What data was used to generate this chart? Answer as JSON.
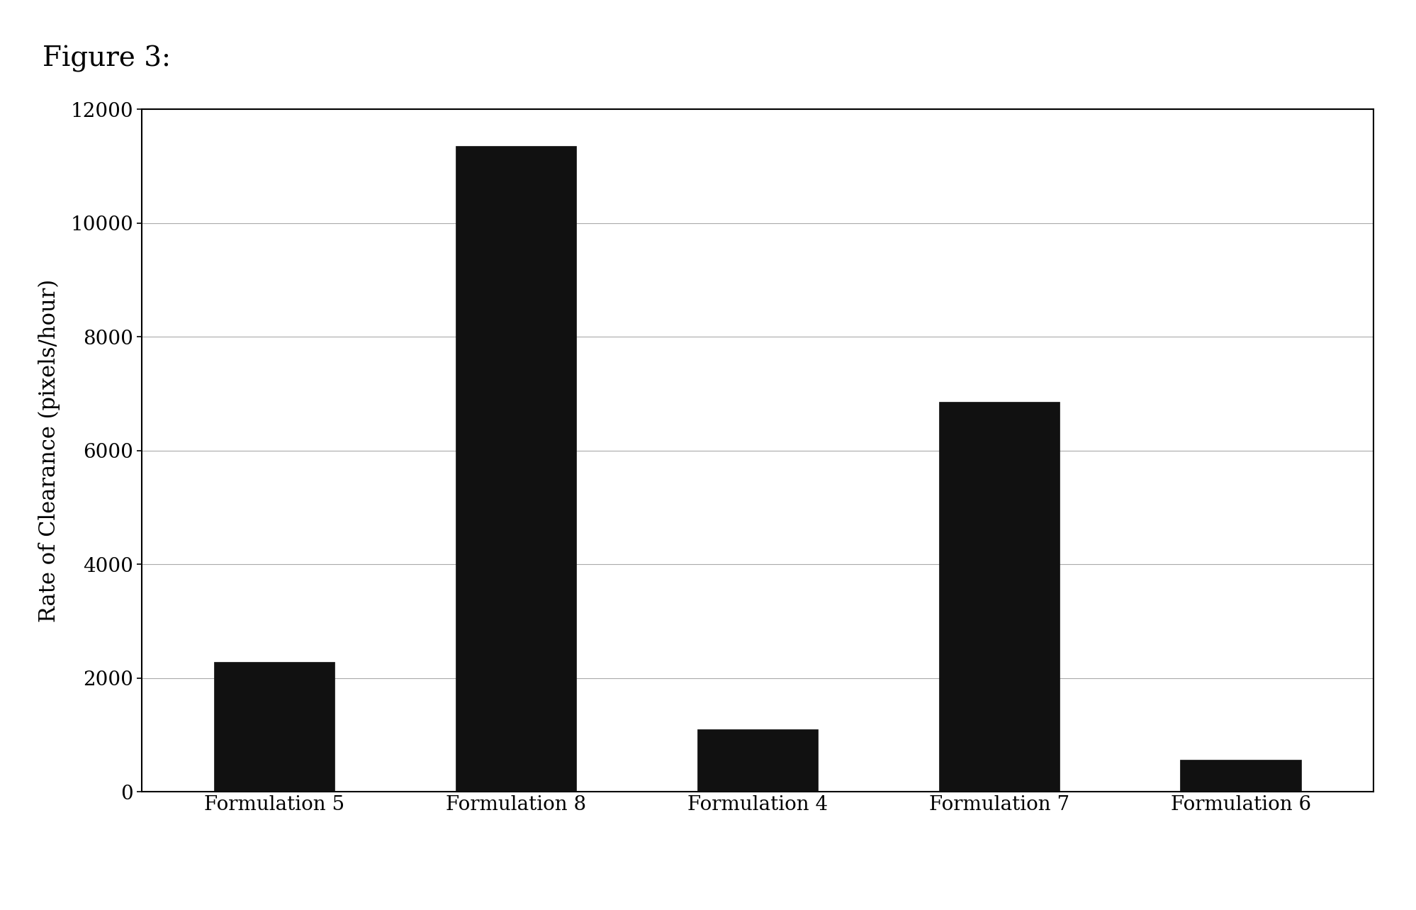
{
  "categories": [
    "Formulation 5",
    "Formulation 8",
    "Formulation 4",
    "Formulation 7",
    "Formulation 6"
  ],
  "values": [
    2280,
    11350,
    1100,
    6850,
    560
  ],
  "bar_color": "#111111",
  "ylabel": "Rate of Clearance (pixels/hour)",
  "ylim": [
    0,
    12000
  ],
  "yticks": [
    0,
    2000,
    4000,
    6000,
    8000,
    10000,
    12000
  ],
  "title": "Figure 3:",
  "title_fontsize": 28,
  "ylabel_fontsize": 22,
  "xlabel_fontsize": 20,
  "tick_fontsize": 20,
  "background_color": "#ffffff",
  "figure_background": "#ffffff",
  "bar_width": 0.5,
  "grid_color": "#aaaaaa",
  "box_color": "#000000"
}
